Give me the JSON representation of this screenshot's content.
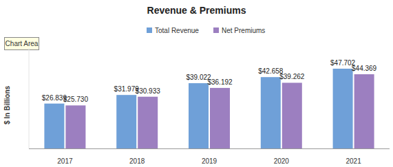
{
  "chart_data": {
    "type": "bar",
    "title": "Revenue & Premiums",
    "annotation": "Chart Area",
    "ylabel": "$ In Billions",
    "categories": [
      "2017",
      "2018",
      "2019",
      "2020",
      "2021"
    ],
    "series": [
      {
        "name": "Total Revenue",
        "color": "#6fa0d8",
        "values": [
          26.839,
          31.979,
          39.022,
          42.658,
          47.702
        ],
        "value_labels": [
          "$26.839",
          "$31.979",
          "$39.022",
          "$42.658",
          "$47.702"
        ]
      },
      {
        "name": "Net Premiums",
        "color": "#9c7fc0",
        "values": [
          25.73,
          30.933,
          36.192,
          39.262,
          44.369
        ],
        "value_labels": [
          "$25.730",
          "$30.933",
          "$36.192",
          "$39.262",
          "$44.369"
        ]
      }
    ],
    "ylim": [
      0,
      60
    ],
    "grid": false,
    "legend": "top",
    "data_labels": true,
    "tick_labels": "x"
  }
}
